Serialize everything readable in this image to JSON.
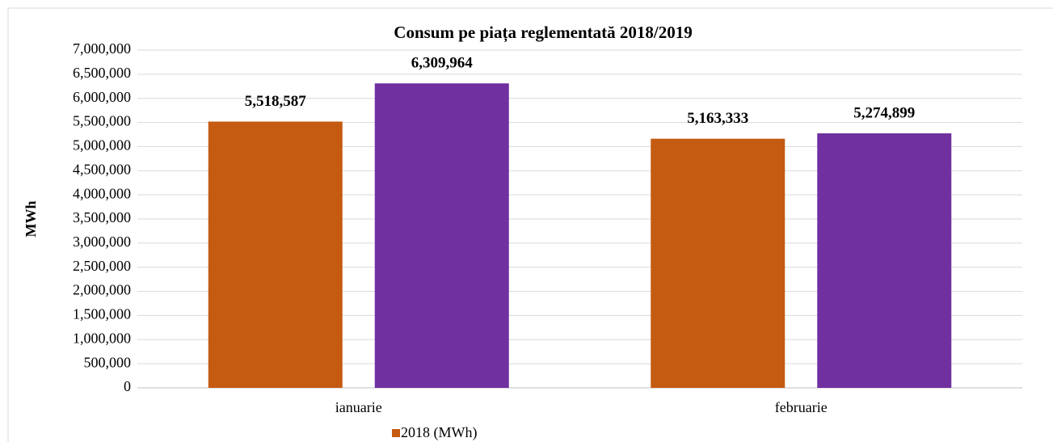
{
  "chart_data": {
    "type": "bar",
    "title": "Consum pe piața reglementată 2018/2019",
    "y_label": "MWh",
    "categories": [
      "ianuarie",
      "februarie"
    ],
    "series": [
      {
        "name": "2018 (MWh)",
        "color": "#c55a11",
        "values": [
          5518587,
          5163333
        ],
        "value_labels": [
          "5,518,587",
          "5,163,333"
        ]
      },
      {
        "color": "#7030a0",
        "values": [
          6309964,
          5274899
        ],
        "value_labels": [
          "6,309,964",
          "5,274,899"
        ]
      }
    ],
    "ylim": [
      0,
      7000000
    ],
    "yticks": [
      0,
      {
        "value": 500000,
        "label": "500,000"
      },
      {
        "value": 1000000,
        "label": "1,000,000"
      },
      {
        "value": 1500000,
        "label": "1,500,000"
      },
      {
        "value": 2000000,
        "label": "2,000,000"
      },
      {
        "value": 2500000,
        "label": "2,500,000"
      },
      {
        "value": 3000000,
        "label": "3,000,000"
      },
      {
        "value": 3500000,
        "label": "3,500,000"
      },
      {
        "value": 4000000,
        "label": "4,000,000"
      },
      {
        "value": 4500000,
        "label": "4,500,000"
      },
      {
        "value": 5000000,
        "label": "5,000,000"
      },
      {
        "value": 5500000,
        "label": "5,500,000"
      },
      {
        "value": 6000000,
        "label": "6,000,000"
      },
      {
        "value": 6500000,
        "label": "6,500,000"
      },
      {
        "value": 7000000,
        "label": "7,000,000"
      }
    ],
    "grid": true
  }
}
